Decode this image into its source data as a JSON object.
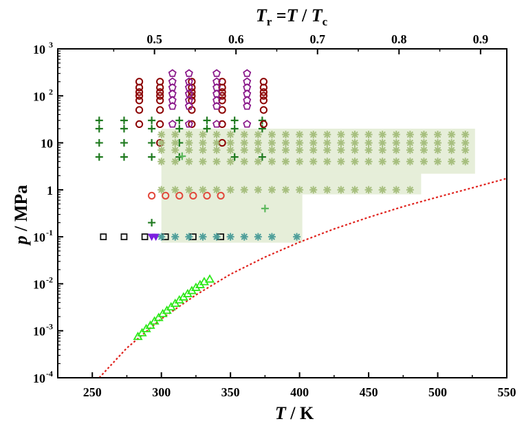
{
  "chart_data": {
    "type": "scatter",
    "xlabel": {
      "symbol": "T",
      "unit": " / K"
    },
    "ylabel": {
      "symbol": "p",
      "unit": " / MPa"
    },
    "top_xlabel": {
      "symbol": "T",
      "sub": "r",
      "rest": " =",
      "T": "T",
      "slash": " / ",
      "Tc": "T",
      "Tc_sub": "c"
    },
    "xlim": [
      225,
      550
    ],
    "ylim_log10": [
      -4,
      3
    ],
    "x_ticks": [
      250,
      300,
      350,
      400,
      450,
      500,
      550
    ],
    "x_tick_labels": [
      "250",
      "300",
      "350",
      "400",
      "450",
      "500",
      "550"
    ],
    "y_ticks_exp": [
      -4,
      -3,
      -2,
      -1,
      0,
      1,
      2,
      3
    ],
    "y_tick_labels": [
      {
        "base": "10",
        "exp": "-4"
      },
      {
        "base": "10",
        "exp": "-3"
      },
      {
        "base": "10",
        "exp": "-2"
      },
      {
        "base": "10",
        "exp": "-1"
      },
      {
        "base": "1",
        "exp": ""
      },
      {
        "base": "10",
        "exp": ""
      },
      {
        "base": "10",
        "exp": "2"
      },
      {
        "base": "10",
        "exp": "3"
      }
    ],
    "critical_temperature_K": 590,
    "top_ticks": [
      0.5,
      0.6,
      0.7,
      0.8,
      0.9
    ],
    "top_tick_labels": [
      "0.5",
      "0.6",
      "0.7",
      "0.8",
      "0.9"
    ],
    "shaded_regions": [
      {
        "x": [
          300,
          402
        ],
        "p": [
          0.075,
          0.8
        ],
        "color": "#e6eed9"
      },
      {
        "x": [
          300,
          488
        ],
        "p": [
          0.8,
          2.2
        ],
        "color": "#e6eed9"
      },
      {
        "x": [
          300,
          527
        ],
        "p": [
          2.2,
          20
        ],
        "color": "#e6eed9"
      }
    ],
    "vapor_pressure_curve": {
      "name": "vapor pressure",
      "style": "dotted",
      "color": "#e0201b",
      "T": [
        255,
        275,
        300,
        325,
        350,
        375,
        400,
        425,
        450,
        475,
        500,
        525,
        550
      ],
      "p": [
        0.0001,
        0.00043,
        0.0018,
        0.0058,
        0.016,
        0.037,
        0.077,
        0.147,
        0.26,
        0.44,
        0.7,
        1.1,
        1.75
      ]
    },
    "series": [
      {
        "name": "triangles",
        "marker": "triangle",
        "color": "#2ee81a",
        "points": [
          [
            283,
            0.00075
          ],
          [
            286,
            0.0009
          ],
          [
            289,
            0.0011
          ],
          [
            292,
            0.0013
          ],
          [
            295,
            0.0016
          ],
          [
            298,
            0.0019
          ],
          [
            301,
            0.0023
          ],
          [
            304,
            0.0027
          ],
          [
            307,
            0.0032
          ],
          [
            310,
            0.0038
          ],
          [
            313,
            0.0045
          ],
          [
            316,
            0.0052
          ],
          [
            319,
            0.0061
          ],
          [
            322,
            0.0071
          ],
          [
            325,
            0.0083
          ],
          [
            328,
            0.0095
          ],
          [
            331,
            0.011
          ],
          [
            335,
            0.0125
          ]
        ]
      },
      {
        "name": "plus",
        "marker": "plus",
        "color": "#1f7a1f",
        "points": [
          [
            255,
            30
          ],
          [
            255,
            20
          ],
          [
            255,
            10
          ],
          [
            255,
            5
          ],
          [
            273,
            30
          ],
          [
            273,
            20
          ],
          [
            273,
            10
          ],
          [
            273,
            5
          ],
          [
            293,
            30
          ],
          [
            293,
            20
          ],
          [
            293,
            10
          ],
          [
            293,
            5
          ],
          [
            293,
            0.2
          ],
          [
            313,
            30
          ],
          [
            313,
            20
          ],
          [
            313,
            10
          ],
          [
            313,
            5
          ],
          [
            333,
            30
          ],
          [
            333,
            20
          ],
          [
            353,
            30
          ],
          [
            353,
            20
          ],
          [
            353,
            5
          ],
          [
            373,
            30
          ],
          [
            373,
            20
          ],
          [
            373,
            5
          ]
        ]
      },
      {
        "name": "plus-light",
        "marker": "plus",
        "color": "#5cb85c",
        "points": [
          [
            375,
            0.4
          ],
          [
            315,
            5.2
          ]
        ]
      },
      {
        "name": "open-circles-dark",
        "marker": "circle",
        "color": "#8b0000",
        "points": [
          [
            284,
            200
          ],
          [
            284,
            150
          ],
          [
            284,
            120
          ],
          [
            284,
            100
          ],
          [
            284,
            80
          ],
          [
            284,
            50
          ],
          [
            284,
            25
          ],
          [
            299,
            200
          ],
          [
            299,
            150
          ],
          [
            299,
            120
          ],
          [
            299,
            100
          ],
          [
            299,
            80
          ],
          [
            299,
            50
          ],
          [
            299,
            25
          ],
          [
            322,
            200
          ],
          [
            322,
            150
          ],
          [
            322,
            120
          ],
          [
            322,
            100
          ],
          [
            322,
            80
          ],
          [
            322,
            50
          ],
          [
            322,
            25
          ],
          [
            344,
            200
          ],
          [
            344,
            150
          ],
          [
            344,
            120
          ],
          [
            344,
            100
          ],
          [
            344,
            80
          ],
          [
            344,
            50
          ],
          [
            344,
            25
          ],
          [
            374,
            200
          ],
          [
            374,
            150
          ],
          [
            374,
            120
          ],
          [
            374,
            100
          ],
          [
            374,
            80
          ],
          [
            374,
            50
          ],
          [
            374,
            25
          ],
          [
            344,
            10
          ],
          [
            299,
            10
          ]
        ]
      },
      {
        "name": "pentagons",
        "marker": "pentagon",
        "color": "#8b1a8b",
        "points": [
          [
            308,
            300
          ],
          [
            308,
            200
          ],
          [
            308,
            150
          ],
          [
            308,
            110
          ],
          [
            308,
            80
          ],
          [
            308,
            60
          ],
          [
            308,
            25
          ],
          [
            320,
            300
          ],
          [
            320,
            200
          ],
          [
            320,
            150
          ],
          [
            320,
            110
          ],
          [
            320,
            80
          ],
          [
            320,
            60
          ],
          [
            320,
            25
          ],
          [
            340,
            300
          ],
          [
            340,
            200
          ],
          [
            340,
            150
          ],
          [
            340,
            110
          ],
          [
            340,
            80
          ],
          [
            340,
            60
          ],
          [
            340,
            25
          ],
          [
            362,
            300
          ],
          [
            362,
            200
          ],
          [
            362,
            150
          ],
          [
            362,
            110
          ],
          [
            362,
            80
          ],
          [
            362,
            60
          ],
          [
            362,
            25
          ]
        ]
      },
      {
        "name": "open-circles-red",
        "marker": "circle",
        "color": "#e2473a",
        "points": [
          [
            293,
            0.75
          ],
          [
            303,
            0.75
          ],
          [
            313,
            0.75
          ],
          [
            323,
            0.75
          ],
          [
            333,
            0.75
          ],
          [
            343,
            0.75
          ]
        ]
      },
      {
        "name": "squares",
        "marker": "square",
        "color": "#111111",
        "points": [
          [
            258,
            0.1
          ],
          [
            273,
            0.1
          ],
          [
            288,
            0.1
          ],
          [
            303,
            0.1
          ],
          [
            323,
            0.1
          ],
          [
            343,
            0.1
          ]
        ]
      },
      {
        "name": "triangles-down",
        "marker": "triangle-down",
        "color": "#7b1fe0",
        "points": [
          [
            293,
            0.1
          ],
          [
            296,
            0.1
          ]
        ]
      },
      {
        "name": "asterisk-teal",
        "marker": "asterisk",
        "color": "#4f9f9a",
        "points": [
          [
            300,
            0.1
          ],
          [
            310,
            0.1
          ],
          [
            320,
            0.1
          ],
          [
            330,
            0.1
          ],
          [
            340,
            0.1
          ],
          [
            350,
            0.1
          ],
          [
            360,
            0.1
          ],
          [
            370,
            0.1
          ],
          [
            380,
            0.1
          ],
          [
            398,
            0.1
          ]
        ]
      },
      {
        "name": "asterisk-green",
        "marker": "asterisk",
        "color": "#a7bf7f",
        "grid": {
          "T": [
            300,
            310,
            320,
            330,
            340,
            350,
            360,
            370,
            380,
            390,
            400,
            410,
            420,
            430,
            440,
            450,
            460,
            470,
            480,
            490,
            500,
            510,
            520
          ],
          "p": [
            15,
            10,
            7,
            4,
            1
          ]
        }
      }
    ]
  }
}
